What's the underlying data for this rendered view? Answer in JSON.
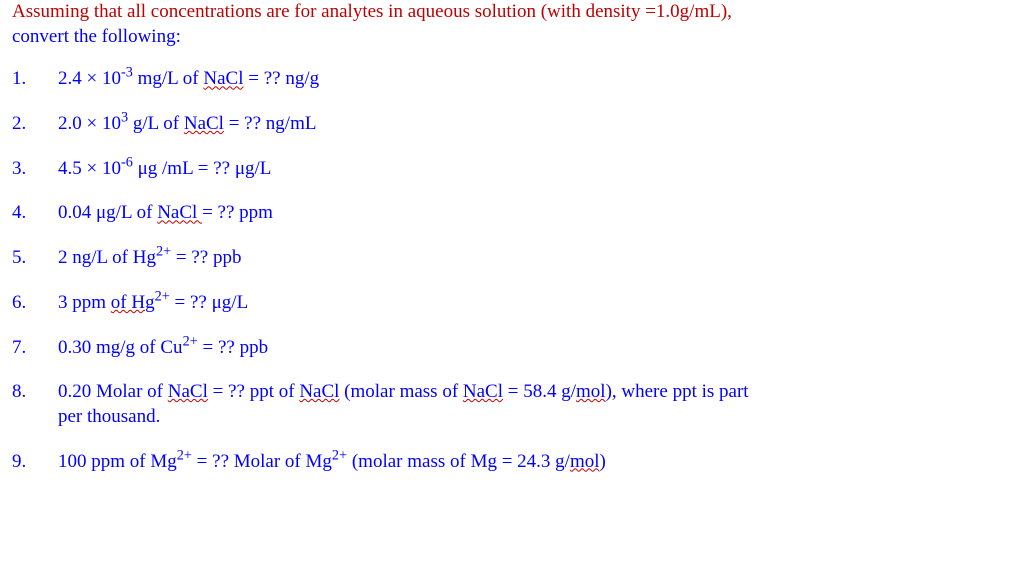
{
  "header": {
    "line1": "Assuming that all concentrations are for analytes in aqueous solution (with density =1.0g/mL),",
    "line2": "convert the following:"
  },
  "items": [
    {
      "num": "1.",
      "pre": "2.4 × 10",
      "sup": "-3",
      "between": " mg/L of ",
      "wavy": "NaCl",
      "post": " =  ??     ng/g"
    },
    {
      "num": "2.",
      "pre": "2.0 × 10",
      "sup": "3",
      "between": " g/L of ",
      "wavy": "NaCl",
      "post": " =  ??  ng/mL"
    },
    {
      "num": "3.",
      "pre": "4.5 × 10",
      "sup": "-6",
      "between": " μg /mL  =  ??  μg/L",
      "wavy": "",
      "post": ""
    },
    {
      "num": "4.",
      "pre": "0.04 μg/L of ",
      "sup": "",
      "between": "",
      "wavy": "NaCl ",
      "post": "=  ?? ppm"
    },
    {
      "num": "5.",
      "pre": "2 ng/L of Hg",
      "sup": "2+",
      "between": " =  ?? ppb",
      "wavy": "",
      "post": ""
    },
    {
      "num": "6.",
      "pre": "3 ppm ",
      "sup": "",
      "between": "",
      "wavy": "of  Hg",
      "postSup": "2+",
      "post": " =  ?? μg/L"
    },
    {
      "num": "7.",
      "pre": "0.30 mg/g of Cu",
      "sup": "2+",
      "between": " = ?? ppb",
      "wavy": "",
      "post": ""
    },
    {
      "num": "8.",
      "pre": "0.20 Molar of ",
      "wavy1": "NaCl",
      "mid1": " = ?? ppt of ",
      "wavy2": "NaCl",
      "paren": "    (molar mass of ",
      "wavy3": "NaCl",
      "mid2": " = 58.4 g/",
      "wavy4": "mol",
      "mid3": "), where ppt is part",
      "line2": "per thousand."
    },
    {
      "num": "9.",
      "pre": "100 ppm of Mg",
      "sup": "2+",
      "mid1": " = ?? Molar of Mg",
      "sup2": "2+",
      "paren": "    (molar mass of Mg = 24.3 g/",
      "wavy1": "mol",
      "post": ")"
    }
  ]
}
